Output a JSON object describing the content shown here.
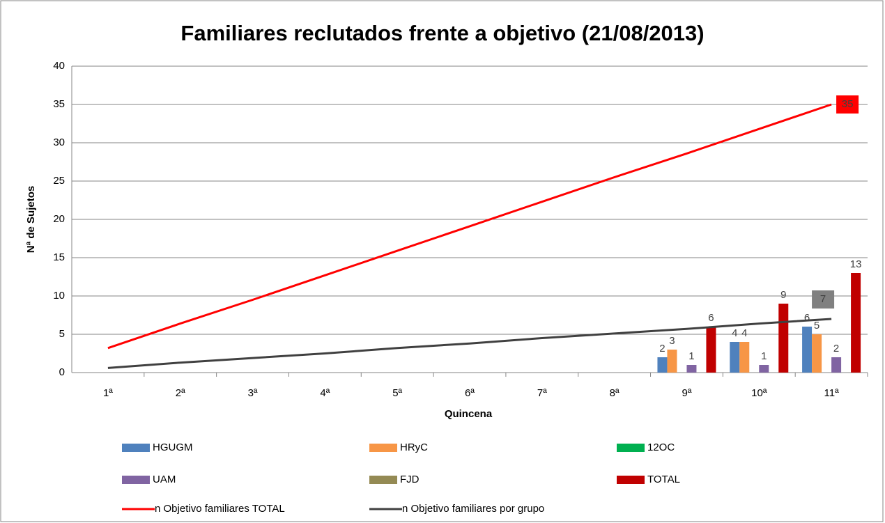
{
  "chart_data": {
    "type": "bar",
    "title": "Familiares reclutados frente a objetivo (21/08/2013)",
    "x_label": "Quincena",
    "y_label": "Nª de Sujetos",
    "categories": [
      "1ª",
      "2ª",
      "3ª",
      "4ª",
      "5ª",
      "6ª",
      "7ª",
      "8ª",
      "9ª",
      "10ª",
      "11ª"
    ],
    "series": [
      {
        "name": "HGUGM",
        "color": "#4f81bd",
        "type": "bar",
        "values": [
          null,
          null,
          null,
          null,
          null,
          null,
          null,
          null,
          2,
          4,
          6
        ]
      },
      {
        "name": "HRyC",
        "color": "#f79646",
        "type": "bar",
        "values": [
          null,
          null,
          null,
          null,
          null,
          null,
          null,
          null,
          3,
          4,
          5
        ]
      },
      {
        "name": "12OC",
        "color": "#00b050",
        "type": "bar",
        "values": [
          null,
          null,
          null,
          null,
          null,
          null,
          null,
          null,
          null,
          null,
          null
        ]
      },
      {
        "name": "UAM",
        "color": "#8064a2",
        "type": "bar",
        "values": [
          null,
          null,
          null,
          null,
          null,
          null,
          null,
          null,
          1,
          1,
          2
        ]
      },
      {
        "name": "FJD",
        "color": "#948a54",
        "type": "bar",
        "values": [
          null,
          null,
          null,
          null,
          null,
          null,
          null,
          null,
          null,
          null,
          null
        ]
      },
      {
        "name": "TOTAL",
        "color": "#c00000",
        "type": "bar",
        "values": [
          null,
          null,
          null,
          null,
          null,
          null,
          null,
          null,
          6,
          9,
          13
        ]
      },
      {
        "name": "n Objetivo familiares  TOTAL",
        "color": "#ff0000",
        "type": "line",
        "data_labels": "last",
        "values": [
          3.2,
          6.4,
          9.5,
          12.7,
          15.9,
          19.1,
          22.3,
          25.5,
          28.6,
          31.8,
          35
        ]
      },
      {
        "name": "n Objetivo familiares por grupo",
        "color": "#404040",
        "type": "line",
        "data_labels": "last",
        "values": [
          0.6,
          1.3,
          1.9,
          2.5,
          3.2,
          3.8,
          4.5,
          5.1,
          5.7,
          6.4,
          7
        ]
      }
    ],
    "ylim": [
      0,
      40
    ],
    "yticks": [
      0,
      5,
      10,
      15,
      20,
      25,
      30,
      35,
      40
    ],
    "grid": true,
    "legend": "bottom"
  }
}
